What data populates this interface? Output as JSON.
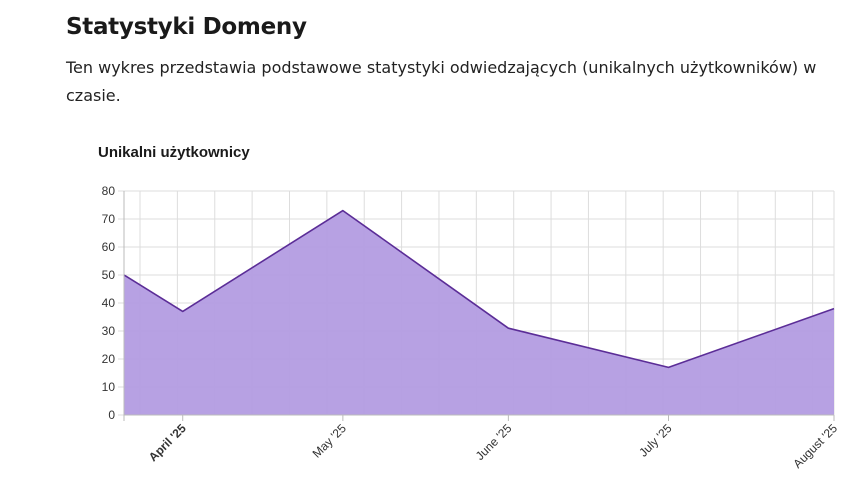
{
  "header": {
    "title": "Statystyki Domeny",
    "description": "Ten wykres przedstawia podstawowe statystyki odwiedzających (unikalnych użytkowników) w czasie."
  },
  "colors": {
    "area_fill": "#b39ce1",
    "line": "#5b2d97",
    "grid": "#dddddd"
  },
  "chart_data": {
    "type": "area",
    "title": "Unikalni użytkownicy",
    "xlabel": "",
    "ylabel": "",
    "ylim": [
      0,
      80
    ],
    "y_ticks": [
      "0",
      "10",
      "20",
      "30",
      "40",
      "50",
      "60",
      "70",
      "80"
    ],
    "x_tick_labels": [
      "April '25",
      "May '25",
      "June '25",
      "July '25",
      "August '25"
    ],
    "x_tick_bold": [
      true,
      false,
      false,
      false,
      false
    ],
    "grid": true,
    "legend": "none",
    "series": [
      {
        "x": [
          "2025-03-21",
          "2025-04-01",
          "2025-05-01",
          "2025-06-01",
          "2025-07-01",
          "2025-08-01"
        ],
        "values": [
          50,
          37,
          73,
          31,
          17,
          38
        ]
      }
    ]
  }
}
